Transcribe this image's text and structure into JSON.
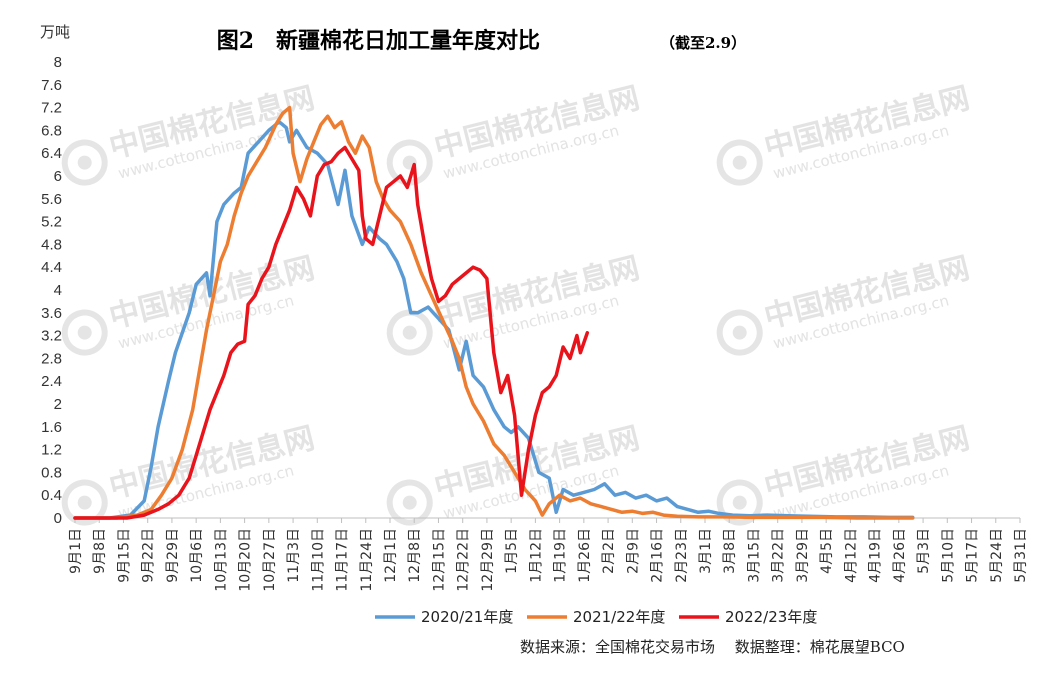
{
  "chart_data": {
    "type": "line",
    "title": "图2　新疆棉花日加工量年度对比",
    "title_note": "（截至2.9）",
    "unit_label": "万吨",
    "ylim": [
      0,
      8
    ],
    "y_ticks": [
      "0",
      "0.4",
      "0.8",
      "1.2",
      "1.6",
      "2",
      "2.4",
      "2.8",
      "3.2",
      "3.6",
      "4",
      "4.4",
      "4.8",
      "5.2",
      "5.6",
      "6",
      "6.4",
      "6.8",
      "7.2",
      "7.6",
      "8"
    ],
    "x_tick_labels": [
      "9月1日",
      "9月8日",
      "9月15日",
      "9月22日",
      "9月29日",
      "10月6日",
      "10月13日",
      "10月20日",
      "10月27日",
      "11月3日",
      "11月10日",
      "11月17日",
      "11月24日",
      "12月1日",
      "12月8日",
      "12月15日",
      "12月22日",
      "12月29日",
      "1月5日",
      "1月12日",
      "1月19日",
      "1月26日",
      "2月2日",
      "2月9日",
      "2月16日",
      "2月23日",
      "3月1日",
      "3月8日",
      "3月15日",
      "3月22日",
      "3月29日",
      "4月5日",
      "4月12日",
      "4月19日",
      "4月26日",
      "5月3日",
      "5月10日",
      "5月17日",
      "5月24日",
      "5月31日"
    ],
    "series_x_unit": "days since 9月1日",
    "series": [
      {
        "name": "2020/21年度",
        "color": "#5b9bd5",
        "points": [
          [
            0,
            0
          ],
          [
            10,
            0
          ],
          [
            16,
            0.05
          ],
          [
            20,
            0.3
          ],
          [
            22,
            0.9
          ],
          [
            24,
            1.6
          ],
          [
            27,
            2.4
          ],
          [
            29,
            2.9
          ],
          [
            33,
            3.6
          ],
          [
            35,
            4.1
          ],
          [
            38,
            4.3
          ],
          [
            39,
            3.9
          ],
          [
            41,
            5.2
          ],
          [
            43,
            5.5
          ],
          [
            46,
            5.7
          ],
          [
            48,
            5.8
          ],
          [
            50,
            6.4
          ],
          [
            53,
            6.6
          ],
          [
            56,
            6.8
          ],
          [
            59,
            6.95
          ],
          [
            61,
            6.85
          ],
          [
            62,
            6.6
          ],
          [
            64,
            6.8
          ],
          [
            67,
            6.5
          ],
          [
            70,
            6.4
          ],
          [
            73,
            6.2
          ],
          [
            76,
            5.5
          ],
          [
            78,
            6.1
          ],
          [
            80,
            5.3
          ],
          [
            83,
            4.8
          ],
          [
            85,
            5.1
          ],
          [
            88,
            4.9
          ],
          [
            90,
            4.8
          ],
          [
            93,
            4.5
          ],
          [
            95,
            4.2
          ],
          [
            97,
            3.6
          ],
          [
            99,
            3.6
          ],
          [
            102,
            3.7
          ],
          [
            105,
            3.5
          ],
          [
            108,
            3.3
          ],
          [
            111,
            2.6
          ],
          [
            113,
            3.1
          ],
          [
            115,
            2.5
          ],
          [
            118,
            2.3
          ],
          [
            121,
            1.9
          ],
          [
            124,
            1.6
          ],
          [
            126,
            1.5
          ],
          [
            128,
            1.6
          ],
          [
            131,
            1.4
          ],
          [
            134,
            0.8
          ],
          [
            137,
            0.7
          ],
          [
            139,
            0.1
          ],
          [
            141,
            0.5
          ],
          [
            144,
            0.4
          ],
          [
            147,
            0.45
          ],
          [
            150,
            0.5
          ],
          [
            153,
            0.6
          ],
          [
            156,
            0.4
          ],
          [
            159,
            0.45
          ],
          [
            162,
            0.35
          ],
          [
            165,
            0.4
          ],
          [
            168,
            0.3
          ],
          [
            171,
            0.35
          ],
          [
            174,
            0.2
          ],
          [
            177,
            0.15
          ],
          [
            180,
            0.1
          ],
          [
            183,
            0.12
          ],
          [
            186,
            0.08
          ],
          [
            190,
            0.05
          ],
          [
            195,
            0.04
          ],
          [
            200,
            0.05
          ],
          [
            206,
            0.04
          ],
          [
            212,
            0.03
          ],
          [
            220,
            0.02
          ],
          [
            228,
            0.02
          ],
          [
            236,
            0.01
          ],
          [
            242,
            0.01
          ]
        ]
      },
      {
        "name": "2021/22年度",
        "color": "#ed7d31",
        "points": [
          [
            0,
            0
          ],
          [
            12,
            0
          ],
          [
            18,
            0.05
          ],
          [
            22,
            0.15
          ],
          [
            25,
            0.4
          ],
          [
            28,
            0.7
          ],
          [
            31,
            1.2
          ],
          [
            34,
            1.9
          ],
          [
            36,
            2.6
          ],
          [
            38,
            3.3
          ],
          [
            40,
            3.9
          ],
          [
            42,
            4.5
          ],
          [
            44,
            4.8
          ],
          [
            46,
            5.3
          ],
          [
            48,
            5.7
          ],
          [
            50,
            6.0
          ],
          [
            52,
            6.2
          ],
          [
            55,
            6.5
          ],
          [
            58,
            6.9
          ],
          [
            60,
            7.1
          ],
          [
            62,
            7.2
          ],
          [
            63,
            6.4
          ],
          [
            65,
            5.9
          ],
          [
            67,
            6.3
          ],
          [
            69,
            6.6
          ],
          [
            71,
            6.9
          ],
          [
            73,
            7.05
          ],
          [
            75,
            6.85
          ],
          [
            77,
            6.95
          ],
          [
            79,
            6.6
          ],
          [
            81,
            6.4
          ],
          [
            83,
            6.7
          ],
          [
            85,
            6.5
          ],
          [
            87,
            5.9
          ],
          [
            89,
            5.6
          ],
          [
            91,
            5.4
          ],
          [
            94,
            5.2
          ],
          [
            97,
            4.8
          ],
          [
            100,
            4.3
          ],
          [
            103,
            3.9
          ],
          [
            106,
            3.5
          ],
          [
            109,
            3.1
          ],
          [
            111,
            2.8
          ],
          [
            113,
            2.3
          ],
          [
            115,
            2.0
          ],
          [
            118,
            1.7
          ],
          [
            121,
            1.3
          ],
          [
            124,
            1.1
          ],
          [
            127,
            0.8
          ],
          [
            130,
            0.5
          ],
          [
            133,
            0.3
          ],
          [
            135,
            0.05
          ],
          [
            137,
            0.25
          ],
          [
            140,
            0.4
          ],
          [
            143,
            0.3
          ],
          [
            146,
            0.35
          ],
          [
            149,
            0.25
          ],
          [
            152,
            0.2
          ],
          [
            155,
            0.15
          ],
          [
            158,
            0.1
          ],
          [
            161,
            0.12
          ],
          [
            164,
            0.08
          ],
          [
            167,
            0.1
          ],
          [
            170,
            0.05
          ],
          [
            174,
            0.03
          ],
          [
            180,
            0.02
          ],
          [
            188,
            0.02
          ],
          [
            196,
            0.01
          ],
          [
            206,
            0.01
          ],
          [
            216,
            0.01
          ],
          [
            226,
            0
          ],
          [
            236,
            0
          ],
          [
            242,
            0
          ]
        ]
      },
      {
        "name": "2022/23年度",
        "color": "#e8131b",
        "points": [
          [
            0,
            0
          ],
          [
            15,
            0
          ],
          [
            20,
            0.05
          ],
          [
            24,
            0.15
          ],
          [
            27,
            0.25
          ],
          [
            30,
            0.4
          ],
          [
            33,
            0.7
          ],
          [
            35,
            1.1
          ],
          [
            37,
            1.5
          ],
          [
            39,
            1.9
          ],
          [
            41,
            2.2
          ],
          [
            43,
            2.5
          ],
          [
            45,
            2.9
          ],
          [
            47,
            3.05
          ],
          [
            49,
            3.1
          ],
          [
            50,
            3.75
          ],
          [
            52,
            3.9
          ],
          [
            54,
            4.2
          ],
          [
            56,
            4.4
          ],
          [
            58,
            4.8
          ],
          [
            60,
            5.1
          ],
          [
            62,
            5.4
          ],
          [
            64,
            5.8
          ],
          [
            66,
            5.6
          ],
          [
            68,
            5.3
          ],
          [
            70,
            6.0
          ],
          [
            72,
            6.2
          ],
          [
            74,
            6.25
          ],
          [
            76,
            6.4
          ],
          [
            78,
            6.5
          ],
          [
            80,
            6.3
          ],
          [
            82,
            6.1
          ],
          [
            83,
            5.3
          ],
          [
            84,
            4.9
          ],
          [
            86,
            4.8
          ],
          [
            88,
            5.3
          ],
          [
            90,
            5.8
          ],
          [
            92,
            5.9
          ],
          [
            94,
            6.0
          ],
          [
            96,
            5.8
          ],
          [
            98,
            6.2
          ],
          [
            99,
            5.5
          ],
          [
            101,
            4.8
          ],
          [
            103,
            4.2
          ],
          [
            105,
            3.8
          ],
          [
            107,
            3.9
          ],
          [
            109,
            4.1
          ],
          [
            111,
            4.2
          ],
          [
            113,
            4.3
          ],
          [
            115,
            4.4
          ],
          [
            117,
            4.35
          ],
          [
            119,
            4.2
          ],
          [
            121,
            2.9
          ],
          [
            123,
            2.2
          ],
          [
            125,
            2.5
          ],
          [
            127,
            1.8
          ],
          [
            129,
            0.4
          ],
          [
            131,
            1.2
          ],
          [
            133,
            1.8
          ],
          [
            135,
            2.2
          ],
          [
            137,
            2.3
          ],
          [
            139,
            2.5
          ],
          [
            141,
            3.0
          ],
          [
            143,
            2.8
          ],
          [
            145,
            3.2
          ],
          [
            146,
            2.9
          ],
          [
            148,
            3.25
          ]
        ]
      }
    ],
    "legend_position": "bottom",
    "grid": false,
    "source_note": "数据来源：全国棉花交易市场　 数据整理：棉花展望BCO",
    "watermark_text": "中国棉花信息网",
    "watermark_url": "www.cottonchina.org.cn"
  }
}
